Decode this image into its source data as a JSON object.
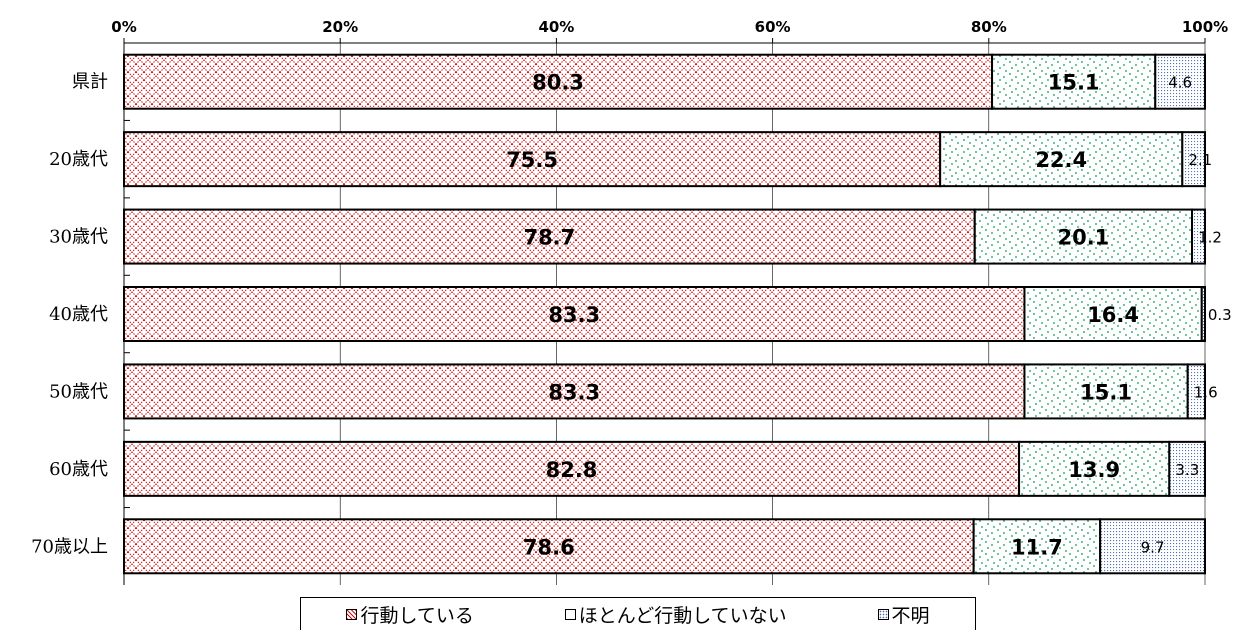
{
  "chart_data": {
    "type": "bar",
    "orientation": "horizontal",
    "stacked": true,
    "normalized": "percent",
    "categories": [
      "県計",
      "20歳代",
      "30歳代",
      "40歳代",
      "50歳代",
      "60歳代",
      "70歳以上"
    ],
    "series": [
      {
        "name": "行動している",
        "color": "#cc0000",
        "pattern": "crosshatch",
        "values": [
          80.3,
          75.5,
          78.7,
          83.3,
          83.3,
          82.8,
          78.6
        ]
      },
      {
        "name": "ほとんど行動していない",
        "color": "#009966",
        "pattern": "sparse-dots",
        "values": [
          15.1,
          22.4,
          20.1,
          16.4,
          15.1,
          13.9,
          11.7
        ]
      },
      {
        "name": "不明",
        "color": "#6a7fb5",
        "pattern": "dense-dots",
        "values": [
          4.6,
          2.1,
          1.2,
          0.3,
          1.6,
          3.3,
          9.7
        ]
      }
    ],
    "x_ticks": [
      "0%",
      "20%",
      "40%",
      "60%",
      "80%",
      "100%"
    ],
    "xlim": [
      0,
      100
    ],
    "grid": "vertical",
    "legend_position": "bottom",
    "title": "",
    "xlabel": "",
    "ylabel": ""
  }
}
